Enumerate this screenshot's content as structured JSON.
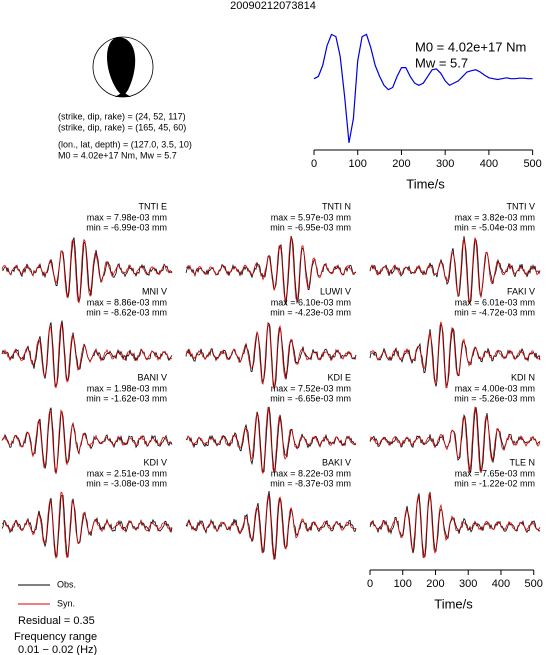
{
  "title": "20090212073814",
  "source_info": [
    "(strike, dip, rake) = (24, 52, 117)",
    "(strike, dip, rake) = (165, 45, 60)",
    "(lon., lat, depth) = (127.0, 3.5, 10)",
    "M0 = 4.02e+17 Nm, Mw = 5.7"
  ],
  "chart_data": [
    {
      "type": "line",
      "annotations": [
        "M0 = 4.02e+17 Nm",
        "Mw = 5.7"
      ],
      "xlabel": "Time/s",
      "x": [
        0,
        10,
        20,
        30,
        40,
        50,
        60,
        70,
        80,
        90,
        100,
        110,
        120,
        130,
        140,
        150,
        160,
        170,
        180,
        190,
        200,
        210,
        220,
        230,
        240,
        250,
        260,
        270,
        280,
        290,
        300,
        310,
        320,
        330,
        340,
        350,
        360,
        370,
        380,
        390,
        400,
        410,
        420,
        430,
        440,
        450,
        460,
        470,
        480,
        490,
        500
      ],
      "values": [
        0,
        0.05,
        0.3,
        0.75,
        1.0,
        0.95,
        0.5,
        -0.4,
        -1.45,
        -0.9,
        0.4,
        0.95,
        1.0,
        0.7,
        0.3,
        0.05,
        -0.15,
        -0.25,
        -0.2,
        0.05,
        0.25,
        0.25,
        0.05,
        -0.1,
        -0.15,
        -0.1,
        0.05,
        0.2,
        0.22,
        0.12,
        -0.05,
        -0.15,
        -0.1,
        -0.05,
        0.05,
        0.15,
        0.18,
        0.2,
        0.15,
        0.08,
        0.02,
        0,
        -0.02,
        0,
        0.02,
        0,
        0,
        0.01,
        0.01,
        0,
        0
      ],
      "color": "#0000dd",
      "xlim": [
        0,
        510
      ],
      "ylim": [
        -1.5,
        1.1
      ],
      "xticks": [
        0,
        100,
        200,
        300,
        400,
        500
      ]
    },
    {
      "type": "waveforms",
      "xlabel": "Time/s",
      "xlim": [
        0,
        510
      ],
      "xticks": [
        0,
        100,
        200,
        300,
        400,
        500
      ],
      "series": [
        {
          "name": "Obs.",
          "color": "#000000"
        },
        {
          "name": "Syn.",
          "color": "#e00000"
        }
      ],
      "stations": [
        {
          "name": "TNTI E",
          "max": "max = 7.98e-03 mm",
          "min": "min = -6.99e-03 mm"
        },
        {
          "name": "TNTI N",
          "max": "max = 5.97e-03 mm",
          "min": "min = -6.95e-03 mm"
        },
        {
          "name": "TNTI V",
          "max": "max = 3.82e-03 mm",
          "min": "min = -5.04e-03 mm"
        },
        {
          "name": "MNI V",
          "max": "max = 8.86e-03 mm",
          "min": "min = -8.62e-03 mm"
        },
        {
          "name": "LUWI V",
          "max": "max = 6.10e-03 mm",
          "min": "min = -4.23e-03 mm"
        },
        {
          "name": "FAKI V",
          "max": "max = 6.01e-03 mm",
          "min": "min = -4.72e-03 mm"
        },
        {
          "name": "BANI V",
          "max": "max = 1.98e-03 mm",
          "min": "min = -1.62e-03 mm"
        },
        {
          "name": "KDI E",
          "max": "max = 7.52e-03 mm",
          "min": "min = -6.65e-03 mm"
        },
        {
          "name": "KDI N",
          "max": "max = 4.00e-03 mm",
          "min": "min = -5.26e-03 mm"
        },
        {
          "name": "KDI V",
          "max": "max = 2.51e-03 mm",
          "min": "min = -3.08e-03 mm"
        },
        {
          "name": "BAKI V",
          "max": "max = 8.22e-03 mm",
          "min": "min = -8.37e-03 mm"
        },
        {
          "name": "TLE N",
          "max": "max = 7.65e-03 mm",
          "min": "min = -1.22e-02 mm"
        }
      ],
      "residual": "Residual = 0.35",
      "frequency_label": "Frequency range",
      "frequency_range": "0.01 − 0.02 (Hz)"
    }
  ]
}
